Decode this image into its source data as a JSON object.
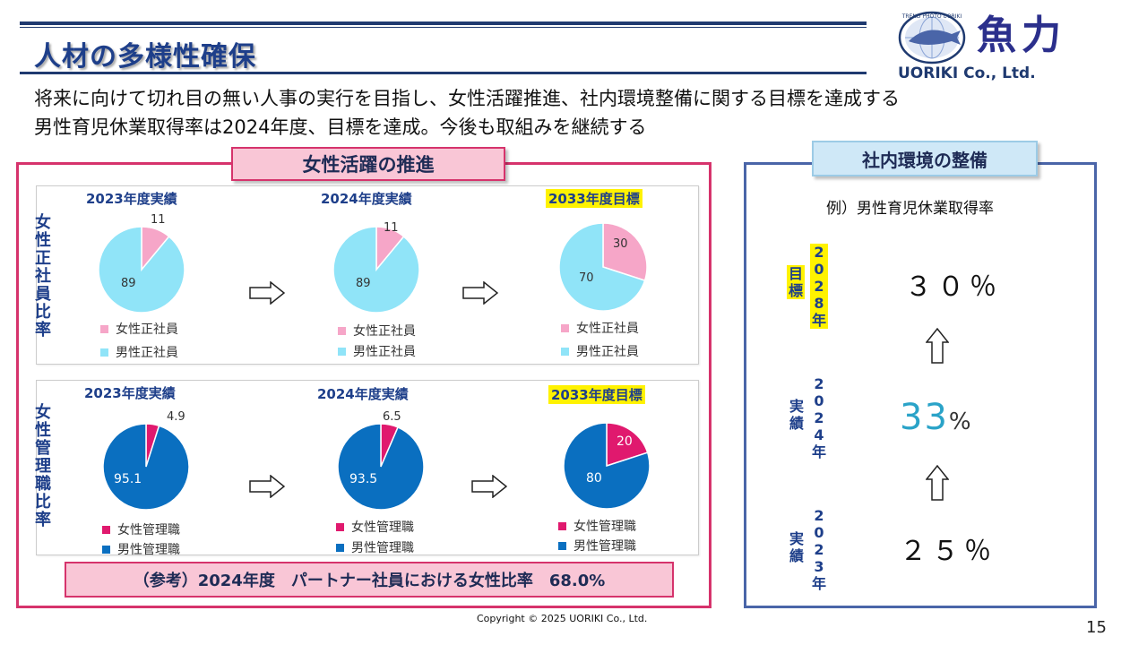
{
  "header": {
    "title": "人材の多様性確保",
    "logo_text": "魚力",
    "logo_ring_text": "TREND PHOTO UORIKI",
    "company": "UORIKI Co., Ltd."
  },
  "intro": {
    "line1": "将来に向けて切れ目の無い人事の実行を目指し、女性活躍推進、社内環境整備に関する目標を達成する",
    "line2": "男性育児休業取得率は2024年度、目標を達成。今後も取組みを継続する"
  },
  "women_panel": {
    "tag": "女性活躍の推進",
    "regular_label": "女性正社員比率",
    "manager_label": "女性管理職比率",
    "reference": "（参考）2024年度　パートナー社員における女性比率　68.0%"
  },
  "colors": {
    "female_regular": "#f6a6c8",
    "male_regular": "#90e4f8",
    "female_manager": "#e0196e",
    "male_manager": "#0a6fc0",
    "accent_pink": "#d6336c",
    "accent_blue": "#4a65a8",
    "title_blue": "#1e3f8a"
  },
  "chart_data": [
    {
      "type": "pie",
      "title": "2023年度実績",
      "categories": [
        "女性正社員",
        "男性正社員"
      ],
      "values": [
        11,
        89
      ],
      "labels": [
        "11",
        "89"
      ]
    },
    {
      "type": "pie",
      "title": "2024年度実績",
      "categories": [
        "女性正社員",
        "男性正社員"
      ],
      "values": [
        11,
        89
      ],
      "labels": [
        "11",
        "89"
      ]
    },
    {
      "type": "pie",
      "title": "2033年度目標",
      "categories": [
        "女性正社員",
        "男性正社員"
      ],
      "values": [
        30,
        70
      ],
      "labels": [
        "30",
        "70"
      ]
    },
    {
      "type": "pie",
      "title": "2023年度実績",
      "categories": [
        "女性管理職",
        "男性管理職"
      ],
      "values": [
        4.9,
        95.1
      ],
      "labels": [
        "4.9",
        "95.1"
      ]
    },
    {
      "type": "pie",
      "title": "2024年度実績",
      "categories": [
        "女性管理職",
        "男性管理職"
      ],
      "values": [
        6.5,
        93.5
      ],
      "labels": [
        "6.5",
        "93.5"
      ]
    },
    {
      "type": "pie",
      "title": "2033年度目標",
      "categories": [
        "女性管理職",
        "男性管理職"
      ],
      "values": [
        20,
        80
      ],
      "labels": [
        "20",
        "80"
      ]
    }
  ],
  "env_panel": {
    "tag": "社内環境の整備",
    "example": "例）男性育児休業取得率",
    "rows": [
      {
        "kind": "目標",
        "year": "2028年",
        "value": "３０％"
      },
      {
        "kind": "実績",
        "year": "2024年",
        "value": "33",
        "unit": "%"
      },
      {
        "kind": "実績",
        "year": "2023年",
        "value": "２５％"
      }
    ]
  },
  "footer": {
    "copyright": "Copyright © 2025 UORIKI Co., Ltd.",
    "page": "15"
  }
}
